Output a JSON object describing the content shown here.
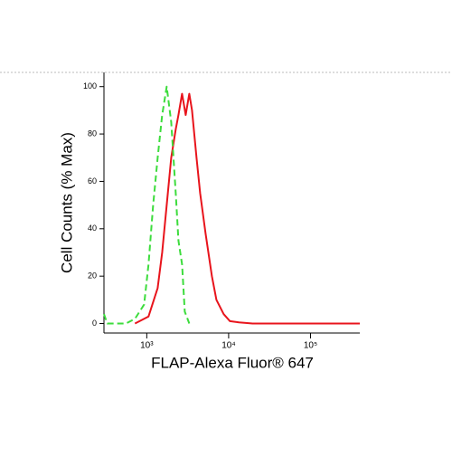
{
  "chart_data": {
    "type": "line",
    "xlabel": "FLAP-Alexa Fluor® 647",
    "ylabel": "Cell Counts (% Max)",
    "xscale": "log",
    "xlim": [
      300,
      400000
    ],
    "ylim": [
      -4,
      106
    ],
    "xticks": [
      {
        "value": 1000,
        "label": "10³"
      },
      {
        "value": 10000,
        "label": "10⁴"
      },
      {
        "value": 100000,
        "label": "10⁵"
      }
    ],
    "yticks": [
      0,
      20,
      40,
      60,
      80,
      100
    ],
    "series": [
      {
        "color": "#e8141c",
        "dash": false,
        "x": [
          718,
          1052,
          1357,
          1541,
          1750,
          1988,
          2258,
          2436,
          2698,
          2986,
          3305,
          3568,
          4053,
          4487,
          5224,
          6245,
          7095,
          8690,
          10390,
          13400,
          19600,
          400000
        ],
        "values": [
          0,
          3,
          15,
          30,
          50,
          70,
          82,
          88,
          97,
          88,
          97,
          90,
          70,
          55,
          38,
          20,
          10,
          4,
          1,
          0.5,
          0,
          0
        ]
      },
      {
        "color": "#3ddc3d",
        "dash": true,
        "x": [
          300,
          330,
          557,
          718,
          927,
          1052,
          1195,
          1357,
          1541,
          1750,
          1988,
          2258,
          2436,
          2698,
          2911,
          3305
        ],
        "values": [
          4,
          0,
          0,
          2,
          8,
          25,
          50,
          70,
          88,
          100,
          85,
          55,
          35,
          25,
          5,
          0
        ]
      }
    ]
  }
}
